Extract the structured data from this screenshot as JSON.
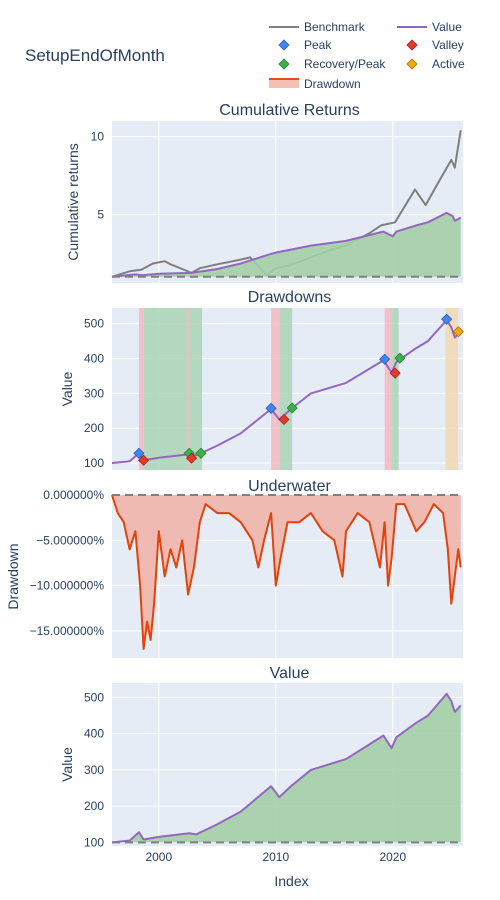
{
  "page_title": "SetupEndOfMonth",
  "legend": [
    {
      "label": "Benchmark",
      "color": "#7f7f7f",
      "symbol": "line"
    },
    {
      "label": "Value",
      "color": "#9467bd",
      "symbol": "line"
    },
    {
      "label": "Peak",
      "color": "#3e86f5",
      "symbol": "diamond"
    },
    {
      "label": "Valley",
      "color": "#e8382c",
      "symbol": "diamond"
    },
    {
      "label": "Recovery/Peak",
      "color": "#3cb14a",
      "symbol": "diamond"
    },
    {
      "label": "Active",
      "color": "#f5a70e",
      "symbol": "diamond"
    },
    {
      "label": "Drawdown",
      "color": "#e8472c",
      "symbol": "band"
    }
  ],
  "colors": {
    "plot_bg": "#e5ecf6",
    "grid": "#ffffff",
    "benchmark": "#7f7f7f",
    "value": "#9467bd",
    "value_fill": "#a3cfa7",
    "drawdown_line": "#e3420b",
    "drawdown_fill": "#eeb5aa",
    "dd_band": "#f5b8bf",
    "recovery_band": "#acd5b5",
    "active_band": "#f2d9b3",
    "baseline": "#7f7f7f"
  },
  "chart_data": [
    {
      "type": "line",
      "title": "Cumulative Returns",
      "xlabel": "",
      "ylabel": "Cumulative returns",
      "xlim": [
        1996.0,
        2026.0
      ],
      "ylim": [
        0.6,
        11.0
      ],
      "yticks": [
        5,
        10
      ],
      "baseline": 1,
      "series": [
        {
          "name": "Benchmark",
          "x": [
            1996.0,
            1997.5,
            1998.5,
            1999.5,
            2000.5,
            2001.0,
            2002.0,
            2002.8,
            2003.5,
            2005.0,
            2007.0,
            2007.8,
            2009.2,
            2010.0,
            2011.0,
            2012.0,
            2013.5,
            2015.0,
            2016.0,
            2018.0,
            2019.0,
            2020.2,
            2021.0,
            2021.9,
            2022.8,
            2024.0,
            2025.0,
            2025.3,
            2025.8
          ],
          "y": [
            1.0,
            1.35,
            1.45,
            1.85,
            2.0,
            1.8,
            1.5,
            1.25,
            1.55,
            1.8,
            2.1,
            2.25,
            1.1,
            1.55,
            1.7,
            1.95,
            2.4,
            2.8,
            3.0,
            3.8,
            4.3,
            4.5,
            5.5,
            6.6,
            5.6,
            7.2,
            8.5,
            8.0,
            10.4
          ]
        },
        {
          "name": "Value",
          "x": [
            1996.0,
            1998.0,
            1998.6,
            2000.0,
            2002.8,
            2005.0,
            2007.0,
            2009.5,
            2010.0,
            2013.0,
            2016.0,
            2019.2,
            2020.0,
            2020.3,
            2022.0,
            2023.0,
            2024.6,
            2025.1,
            2025.3,
            2025.8
          ],
          "y": [
            1.0,
            1.15,
            1.1,
            1.2,
            1.25,
            1.5,
            1.85,
            2.45,
            2.55,
            3.0,
            3.3,
            3.9,
            3.6,
            3.9,
            4.3,
            4.5,
            5.1,
            4.9,
            4.6,
            4.8
          ]
        }
      ]
    },
    {
      "type": "line",
      "title": "Drawdowns",
      "xlabel": "",
      "ylabel": "Value",
      "xlim": [
        1996.0,
        2026.0
      ],
      "ylim": [
        80,
        545
      ],
      "yticks": [
        100,
        200,
        300,
        400,
        500
      ],
      "series": [
        {
          "name": "Value",
          "x": [
            1996.0,
            1997.5,
            1998.3,
            1998.7,
            2000.0,
            2002.6,
            2003.2,
            2005.0,
            2007.0,
            2009.6,
            2010.3,
            2011.3,
            2013.0,
            2016.0,
            2019.2,
            2019.9,
            2020.3,
            2022.0,
            2023.0,
            2024.6,
            2025.0,
            2025.3,
            2025.8
          ],
          "y": [
            100,
            105,
            128,
            108,
            115,
            125,
            122,
            150,
            185,
            255,
            225,
            255,
            300,
            330,
            395,
            360,
            390,
            430,
            450,
            510,
            490,
            460,
            478
          ]
        }
      ],
      "bands": [
        {
          "kind": "drawdown",
          "x0": 1998.3,
          "x1": 1998.7
        },
        {
          "kind": "recovery",
          "x0": 1998.7,
          "x1": 2003.7
        },
        {
          "kind": "drawdown",
          "x0": 2002.4,
          "x1": 2002.6
        },
        {
          "kind": "drawdown",
          "x0": 2009.6,
          "x1": 2010.3
        },
        {
          "kind": "recovery",
          "x0": 2010.3,
          "x1": 2011.4
        },
        {
          "kind": "drawdown",
          "x0": 2019.3,
          "x1": 2019.9
        },
        {
          "kind": "recovery",
          "x0": 2019.9,
          "x1": 2020.5
        },
        {
          "kind": "active",
          "x0": 2024.5,
          "x1": 2025.6
        }
      ],
      "markers": [
        {
          "series": "Peak",
          "x": 1998.3,
          "y": 128
        },
        {
          "series": "Valley",
          "x": 1998.7,
          "y": 108
        },
        {
          "series": "Recovery/Peak",
          "x": 2002.6,
          "y": 128
        },
        {
          "series": "Valley",
          "x": 2002.8,
          "y": 114
        },
        {
          "series": "Recovery/Peak",
          "x": 2003.6,
          "y": 128
        },
        {
          "series": "Peak",
          "x": 2009.6,
          "y": 257
        },
        {
          "series": "Valley",
          "x": 2010.7,
          "y": 225
        },
        {
          "series": "Recovery/Peak",
          "x": 2011.4,
          "y": 258
        },
        {
          "series": "Peak",
          "x": 2019.3,
          "y": 398
        },
        {
          "series": "Valley",
          "x": 2020.2,
          "y": 358
        },
        {
          "series": "Recovery/Peak",
          "x": 2020.6,
          "y": 401
        },
        {
          "series": "Peak",
          "x": 2024.6,
          "y": 513
        },
        {
          "series": "Active",
          "x": 2025.6,
          "y": 477
        }
      ]
    },
    {
      "type": "area",
      "title": "Underwater",
      "xlabel": "",
      "ylabel": "Drawdown",
      "xlim": [
        1996.0,
        2026.0
      ],
      "ylim": [
        -0.18,
        0.0
      ],
      "yticks": [
        0,
        -0.05,
        -0.1,
        -0.15
      ],
      "ytick_labels": [
        "0.000000%",
        "−5.000000%",
        "−10.000000%",
        "−15.000000%"
      ],
      "series": [
        {
          "name": "Drawdown",
          "x": [
            1996.0,
            1996.5,
            1997.0,
            1997.5,
            1998.0,
            1998.4,
            1998.7,
            1999.0,
            1999.3,
            1999.6,
            2000.0,
            2000.5,
            2001.0,
            2001.5,
            2002.0,
            2002.5,
            2003.0,
            2003.5,
            2004.0,
            2005.0,
            2006.0,
            2007.0,
            2008.0,
            2008.5,
            2009.0,
            2009.6,
            2010.0,
            2010.4,
            2011.0,
            2012.0,
            2013.0,
            2014.0,
            2015.0,
            2015.7,
            2016.0,
            2017.0,
            2018.0,
            2018.9,
            2019.3,
            2019.6,
            2019.9,
            2020.3,
            2021.0,
            2022.0,
            2022.7,
            2023.5,
            2024.3,
            2024.7,
            2025.0,
            2025.3,
            2025.6,
            2025.8
          ],
          "y": [
            0.0,
            -0.02,
            -0.03,
            -0.06,
            -0.04,
            -0.1,
            -0.17,
            -0.14,
            -0.16,
            -0.12,
            -0.04,
            -0.09,
            -0.06,
            -0.08,
            -0.05,
            -0.11,
            -0.08,
            -0.03,
            -0.01,
            -0.02,
            -0.02,
            -0.03,
            -0.05,
            -0.08,
            -0.05,
            -0.02,
            -0.1,
            -0.07,
            -0.03,
            -0.03,
            -0.02,
            -0.04,
            -0.05,
            -0.09,
            -0.04,
            -0.02,
            -0.03,
            -0.08,
            -0.03,
            -0.1,
            -0.07,
            -0.01,
            -0.01,
            -0.04,
            -0.03,
            -0.01,
            -0.02,
            -0.06,
            -0.12,
            -0.09,
            -0.06,
            -0.08
          ]
        }
      ]
    },
    {
      "type": "area",
      "title": "Value",
      "xlabel": "Index",
      "ylabel": "Value",
      "xlim": [
        1996.0,
        2026.0
      ],
      "ylim": [
        90,
        540
      ],
      "yticks": [
        100,
        200,
        300,
        400,
        500
      ],
      "xticks": [
        2000,
        2010,
        2020
      ],
      "baseline": 100,
      "series": [
        {
          "name": "Value",
          "x": [
            1996.0,
            1997.5,
            1998.3,
            1998.7,
            2000.0,
            2002.6,
            2003.2,
            2005.0,
            2007.0,
            2009.6,
            2010.3,
            2011.3,
            2013.0,
            2016.0,
            2019.2,
            2019.9,
            2020.3,
            2022.0,
            2023.0,
            2024.6,
            2025.0,
            2025.3,
            2025.8
          ],
          "y": [
            100,
            105,
            128,
            108,
            115,
            125,
            122,
            150,
            185,
            255,
            225,
            255,
            300,
            330,
            395,
            360,
            390,
            430,
            450,
            510,
            490,
            460,
            478
          ]
        }
      ]
    }
  ]
}
